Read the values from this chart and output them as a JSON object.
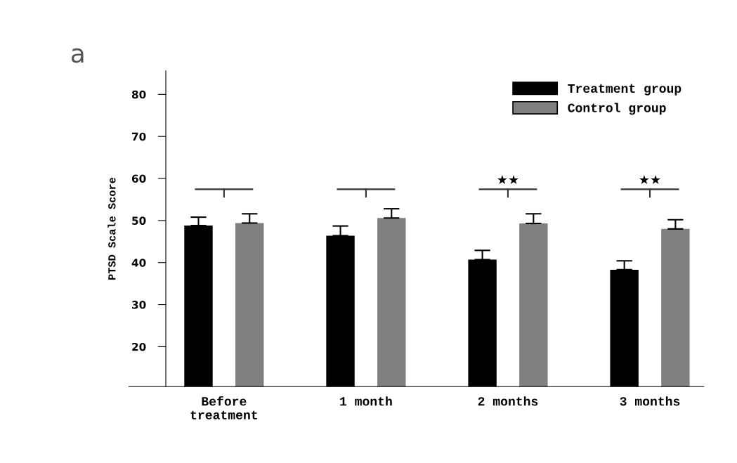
{
  "chart_data": {
    "type": "bar",
    "ylabel": "PTSD Scale Score",
    "categories": [
      "Before\ntreatment",
      "1 month",
      "2 months",
      "3 months"
    ],
    "series": [
      {
        "name": "Treatment group",
        "color": "#000000",
        "values": [
          48.8,
          46.4,
          40.7,
          38.3
        ],
        "errors": [
          [
            48.8,
            50.8
          ],
          [
            46.4,
            48.7
          ],
          [
            40.7,
            42.9
          ],
          [
            38.3,
            40.4
          ]
        ]
      },
      {
        "name": "Control group",
        "color": "#7f7f7f",
        "values": [
          49.4,
          50.6,
          49.3,
          48.0
        ],
        "errors": [
          [
            49.4,
            51.6
          ],
          [
            50.6,
            52.8
          ],
          [
            49.3,
            51.6
          ],
          [
            48.0,
            50.2
          ]
        ]
      }
    ],
    "ylim": [
      10.5,
      85.6
    ],
    "yticks": [
      20,
      30,
      40,
      50,
      60,
      70,
      80
    ],
    "grid": false,
    "legend": "top right",
    "annotations": [
      "a",
      "★★",
      "★★"
    ]
  }
}
